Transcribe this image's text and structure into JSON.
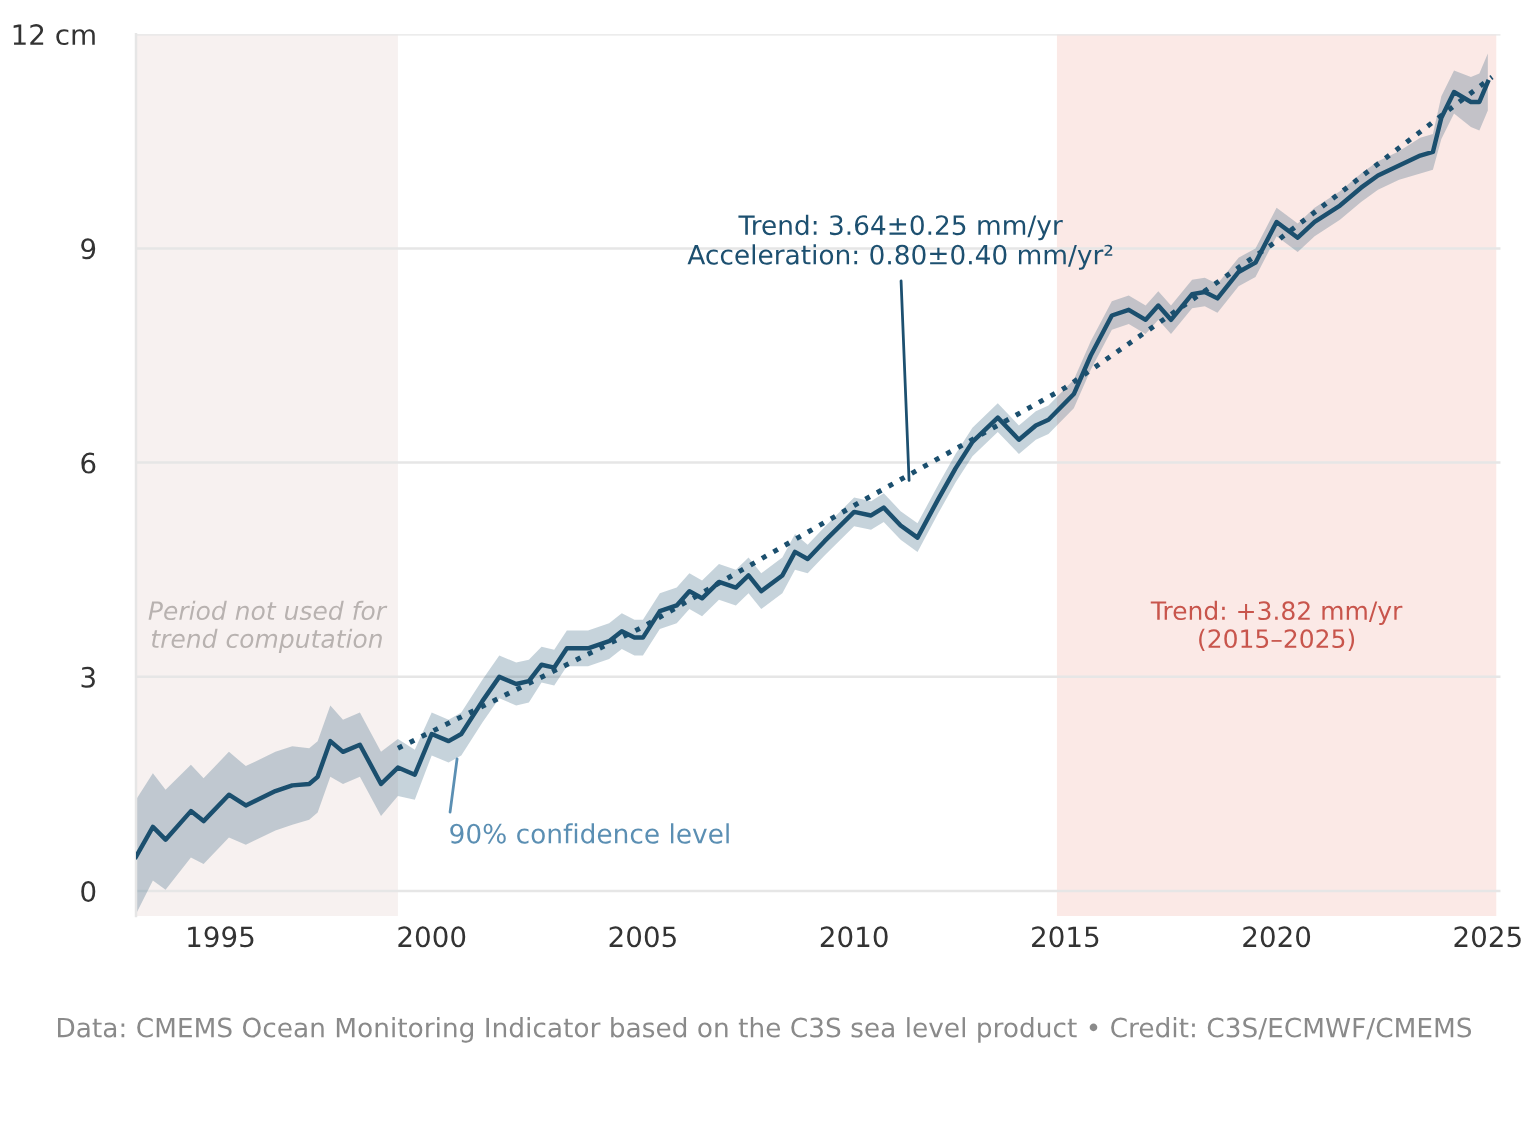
{
  "chart_data": {
    "type": "line",
    "x": [
      1993.0,
      1993.4,
      1993.7,
      1994.3,
      1994.6,
      1995.2,
      1995.6,
      1996.3,
      1996.7,
      1997.1,
      1997.3,
      1997.6,
      1997.9,
      1998.3,
      1998.8,
      1999.2,
      1999.6,
      2000.0,
      2000.4,
      2000.7,
      2001.2,
      2001.6,
      2002.0,
      2002.3,
      2002.6,
      2002.9,
      2003.2,
      2003.7,
      2004.2,
      2004.5,
      2004.8,
      2005.0,
      2005.4,
      2005.8,
      2006.1,
      2006.4,
      2006.8,
      2007.2,
      2007.5,
      2007.8,
      2008.3,
      2008.6,
      2008.9,
      2009.3,
      2010.0,
      2010.4,
      2010.7,
      2011.1,
      2011.5,
      2012.0,
      2012.4,
      2012.8,
      2013.4,
      2013.9,
      2014.3,
      2014.6,
      2015.2,
      2015.6,
      2016.1,
      2016.5,
      2016.9,
      2017.2,
      2017.5,
      2018.0,
      2018.3,
      2018.6,
      2019.1,
      2019.5,
      2020.0,
      2020.5,
      2020.9,
      2021.5,
      2022.0,
      2022.4,
      2022.9,
      2023.4,
      2023.7,
      2023.9,
      2024.2,
      2024.6,
      2024.8,
      2025.0
    ],
    "series": [
      {
        "color": "#1b4f6e",
        "line_style": "solid",
        "values": [
          0.48,
          0.9,
          0.72,
          1.12,
          0.98,
          1.35,
          1.2,
          1.4,
          1.48,
          1.5,
          1.6,
          2.1,
          1.95,
          2.05,
          1.5,
          1.73,
          1.63,
          2.2,
          2.1,
          2.2,
          2.66,
          3.0,
          2.9,
          2.94,
          3.17,
          3.13,
          3.4,
          3.4,
          3.5,
          3.64,
          3.55,
          3.55,
          3.92,
          4.0,
          4.2,
          4.1,
          4.33,
          4.25,
          4.42,
          4.2,
          4.42,
          4.75,
          4.65,
          4.9,
          5.31,
          5.26,
          5.37,
          5.12,
          4.95,
          5.5,
          5.92,
          6.29,
          6.63,
          6.32,
          6.52,
          6.6,
          6.96,
          7.5,
          8.06,
          8.14,
          8.0,
          8.2,
          8.0,
          8.36,
          8.39,
          8.3,
          8.67,
          8.8,
          9.37,
          9.15,
          9.37,
          9.6,
          9.85,
          10.02,
          10.16,
          10.3,
          10.35,
          10.83,
          11.19,
          11.05,
          11.05,
          11.33
        ],
        "lower": [
          -0.32,
          0.15,
          0.02,
          0.47,
          0.38,
          0.75,
          0.65,
          0.85,
          0.93,
          1.0,
          1.1,
          1.6,
          1.5,
          1.6,
          1.05,
          1.33,
          1.28,
          1.9,
          1.8,
          1.9,
          2.36,
          2.7,
          2.6,
          2.64,
          2.92,
          2.88,
          3.15,
          3.15,
          3.25,
          3.39,
          3.3,
          3.3,
          3.67,
          3.75,
          3.95,
          3.85,
          4.08,
          4.0,
          4.17,
          3.95,
          4.17,
          4.5,
          4.45,
          4.7,
          5.11,
          5.06,
          5.17,
          4.92,
          4.75,
          5.3,
          5.72,
          6.09,
          6.43,
          6.12,
          6.32,
          6.4,
          6.76,
          7.3,
          7.86,
          7.94,
          7.8,
          8.0,
          7.8,
          8.16,
          8.19,
          8.1,
          8.47,
          8.6,
          9.17,
          8.95,
          9.17,
          9.4,
          9.65,
          9.82,
          9.96,
          10.05,
          10.1,
          10.53,
          10.89,
          10.7,
          10.65,
          10.93
        ],
        "upper": [
          1.28,
          1.65,
          1.42,
          1.77,
          1.58,
          1.95,
          1.75,
          1.95,
          2.03,
          2.0,
          2.1,
          2.6,
          2.4,
          2.5,
          1.95,
          2.13,
          1.98,
          2.5,
          2.4,
          2.5,
          2.96,
          3.3,
          3.2,
          3.24,
          3.42,
          3.38,
          3.65,
          3.65,
          3.75,
          3.89,
          3.8,
          3.8,
          4.17,
          4.25,
          4.45,
          4.35,
          4.58,
          4.5,
          4.67,
          4.45,
          4.67,
          5.0,
          4.85,
          5.1,
          5.51,
          5.46,
          5.57,
          5.32,
          5.15,
          5.7,
          6.12,
          6.49,
          6.83,
          6.52,
          6.72,
          6.8,
          7.16,
          7.7,
          8.26,
          8.34,
          8.2,
          8.4,
          8.2,
          8.56,
          8.59,
          8.5,
          8.87,
          9.0,
          9.57,
          9.35,
          9.57,
          9.8,
          10.05,
          10.22,
          10.36,
          10.55,
          10.6,
          11.13,
          11.49,
          11.4,
          11.45,
          11.73
        ]
      },
      {
        "type": "line",
        "color": "#1b4f6e",
        "line_style": "dotted",
        "x": [
          1999.2,
          2005.0,
          2010.0,
          2015.0,
          2020.0,
          2025.1
        ],
        "values": [
          2.0,
          3.7,
          5.4,
          7.05,
          9.1,
          11.4
        ]
      }
    ],
    "xlim": [
      1993.0,
      2025.3
    ],
    "ylim": [
      -0.35,
      12
    ],
    "xticks": [
      1995,
      2000,
      2005,
      2010,
      2015,
      2020,
      2025
    ],
    "yticks": [
      0,
      3,
      6,
      9,
      {
        "value": 12,
        "label": "12 cm"
      }
    ],
    "grid": "y",
    "bands": [
      {
        "axis": "x",
        "from": 1993.0,
        "to": 1999.2,
        "label": "Period not used for\ntrend computation",
        "color": "#f7f1f0"
      },
      {
        "axis": "x",
        "from": 2014.8,
        "to": 2025.2,
        "label": "Trend: +3.82 mm/yr\n(2015–2025)",
        "color": "#fbe9e6"
      }
    ],
    "annotations": [
      {
        "text": "Trend: 3.64±0.25 mm/yr\nAcceleration: 0.80±0.40 mm/yr²",
        "x": 2011.3,
        "y": 5.75
      },
      {
        "text": "90% confidence level",
        "x": 2000.6,
        "y": 1.85
      },
      "Data: CMEMS Ocean Monitoring Indicator based on the C3S sea level product • Credit: C3S/ECMWF/CMEMS"
    ]
  }
}
